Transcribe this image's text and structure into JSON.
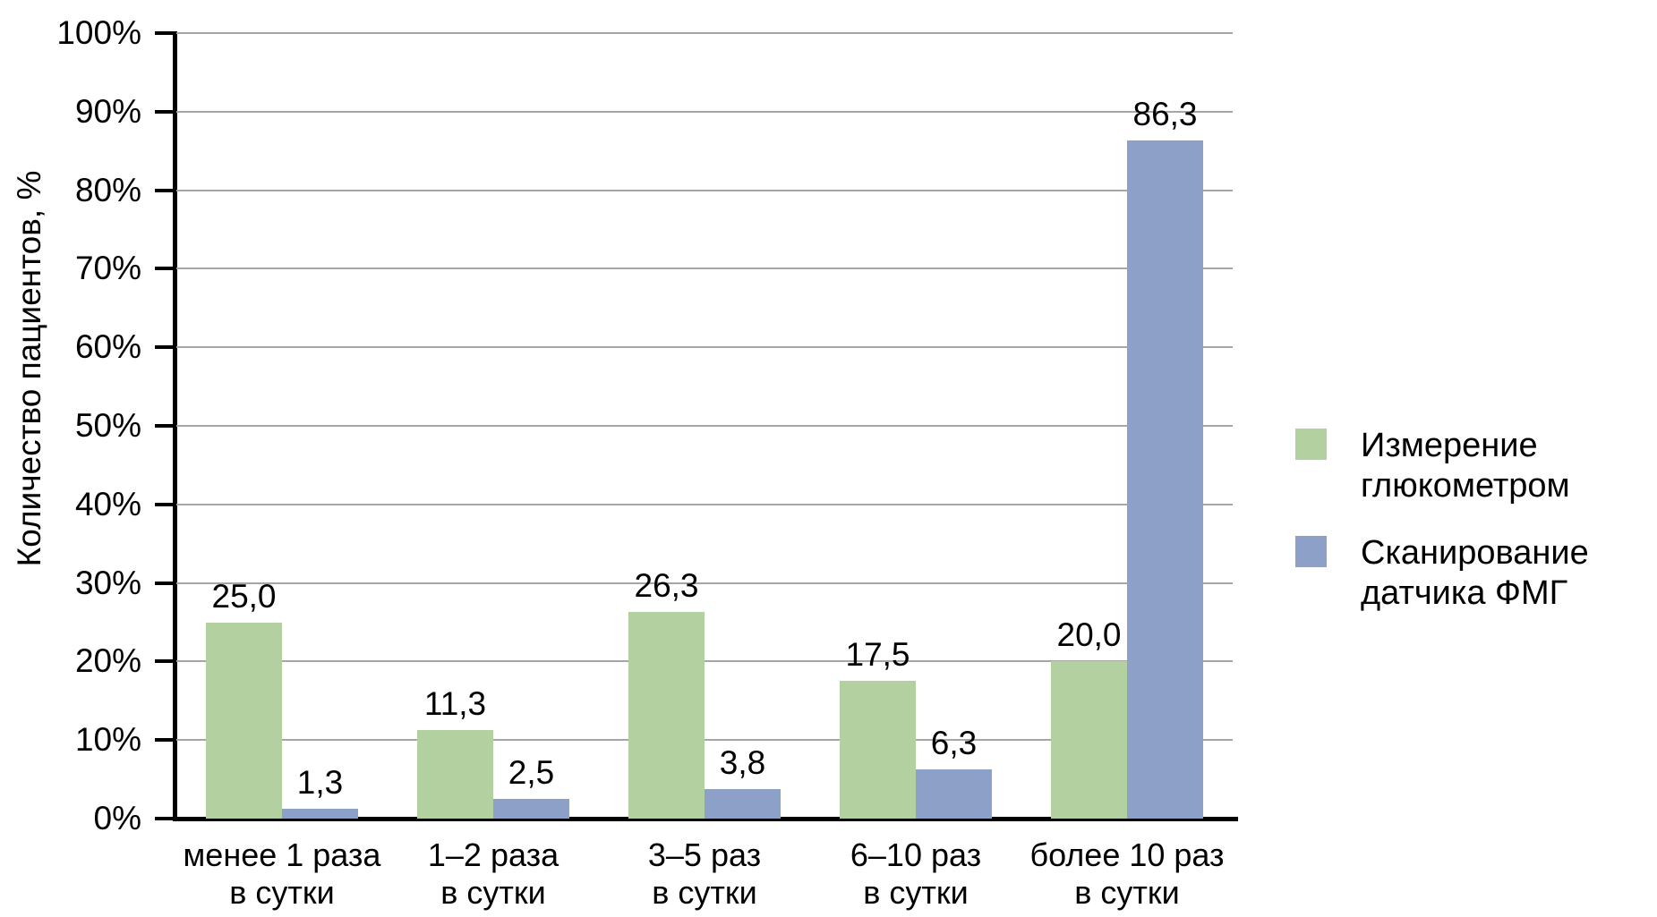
{
  "figure": {
    "background": "#ffffff",
    "text_color": "#000000",
    "gridline_color": "#a6a6a6",
    "axis_color": "#000000"
  },
  "chart_data": {
    "type": "bar",
    "title": "",
    "xlabel": "",
    "ylabel": "Количество пациентов, %",
    "ylim": [
      0,
      100
    ],
    "y_tick_step": 10,
    "y_tick_labels": [
      "0%",
      "10%",
      "20%",
      "30%",
      "40%",
      "50%",
      "60%",
      "70%",
      "80%",
      "90%",
      "100%"
    ],
    "grid": "horizontal",
    "legend_position": "right",
    "categories": [
      "менее 1 раза\nв сутки",
      "1–2 раза\nв сутки",
      "3–5 раз\nв сутки",
      "6–10 раз\nв сутки",
      "более 10 раз\nв сутки"
    ],
    "series": [
      {
        "name": "Измерение\nглюкометром",
        "color": "#b2d0a0",
        "values": [
          25.0,
          11.3,
          26.3,
          17.5,
          20.0
        ],
        "value_labels": [
          "25,0",
          "11,3",
          "26,3",
          "17,5",
          "20,0"
        ]
      },
      {
        "name": "Сканирование\nдатчика ФМГ",
        "color": "#8da0c8",
        "values": [
          1.3,
          2.5,
          3.8,
          6.3,
          86.3
        ],
        "value_labels": [
          "1,3",
          "2,5",
          "3,8",
          "6,3",
          "86,3"
        ]
      }
    ]
  }
}
